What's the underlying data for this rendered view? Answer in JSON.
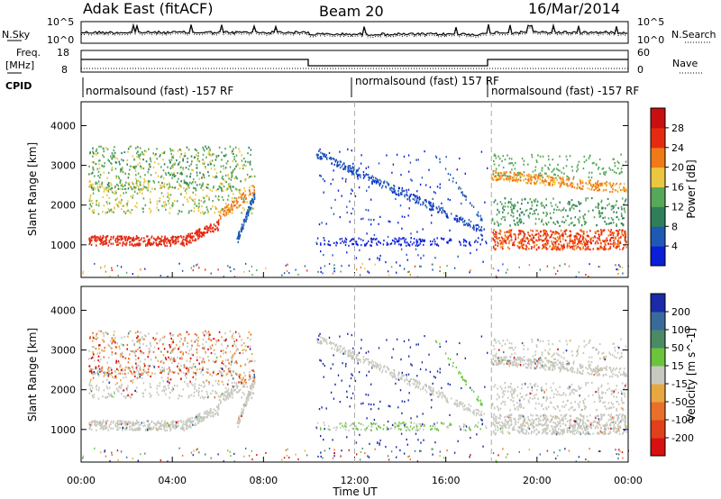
{
  "header": {
    "station": "Adak East (fitACF)",
    "beam": "Beam 20",
    "date": "16/Mar/2014"
  },
  "top_panels": {
    "nsky_label": "N.Sky",
    "nsky_ticks": [
      "10^5",
      "10^0"
    ],
    "nsearch_label": "N.Search",
    "freq_label_line1": "Freq.",
    "freq_label_line2": "[MHz]",
    "freq_ticks": [
      "18",
      "8"
    ],
    "nave_label": "Nave",
    "nave_ticks": [
      "60",
      "0"
    ],
    "cpid_label": "CPID",
    "cpid_segments": [
      {
        "text": "normalsound (fast) -157 RF",
        "start_hour": 0,
        "end_hour": 12
      },
      {
        "text": "normalsound (fast) 157 RF",
        "start_hour": 12,
        "end_hour": 18
      },
      {
        "text": "normalsound (fast) -157 RF",
        "start_hour": 18,
        "end_hour": 24
      }
    ]
  },
  "chart_data": [
    {
      "type": "heatmap",
      "title": "",
      "ylabel": "Slant Range [km]",
      "xlabel": "",
      "ylim": [
        180,
        4600
      ],
      "xlim": [
        0,
        24
      ],
      "yticks": [
        "1000",
        "2000",
        "3000",
        "4000"
      ],
      "colorbar": {
        "label": "Power [dB]",
        "ticks": [
          "4",
          "8",
          "12",
          "16",
          "20",
          "24",
          "28"
        ],
        "colors": [
          "#0a1fd6",
          "#1e5ab4",
          "#2f7f5a",
          "#58a85a",
          "#ebc640",
          "#f07a18",
          "#e62a12",
          "#c81010"
        ]
      },
      "scatter_regions": [
        {
          "name": "",
          "x_range": [
            0.3,
            7.6
          ],
          "range_km": [
            900,
            3500
          ],
          "value_range": [
            8,
            28
          ]
        },
        {
          "name": "",
          "x_range": [
            10.3,
            17.8
          ],
          "range_km": [
            900,
            3400
          ],
          "value_range": [
            4,
            12
          ]
        },
        {
          "name": "",
          "x_range": [
            18.0,
            23.9
          ],
          "range_km": [
            800,
            3300
          ],
          "value_range": [
            12,
            28
          ]
        }
      ]
    },
    {
      "type": "heatmap",
      "title": "",
      "ylabel": "Slant Range [km]",
      "xlabel": "Time UT",
      "ylim": [
        180,
        4600
      ],
      "xlim": [
        0,
        24
      ],
      "yticks": [
        "1000",
        "2000",
        "3000",
        "4000"
      ],
      "xticks": [
        "00:00",
        "04:00",
        "08:00",
        "12:00",
        "16:00",
        "20:00",
        "00:00"
      ],
      "colorbar": {
        "label": "Velocity [m s^-1]",
        "ticks": [
          "200",
          "100",
          "50",
          "15",
          "-15",
          "-50",
          "-100",
          "-200"
        ],
        "colors": [
          "#1a2aa8",
          "#3a6a9a",
          "#4a8a64",
          "#6ac43c",
          "#c8c8c0",
          "#e8a840",
          "#e8702a",
          "#e0401a",
          "#d81010"
        ]
      }
    }
  ]
}
